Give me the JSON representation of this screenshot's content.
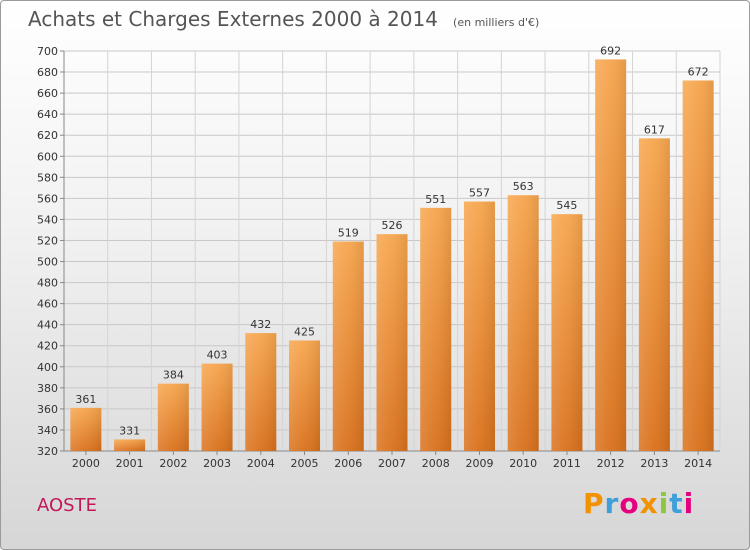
{
  "title": "Achats et Charges Externes 2000 à 2014",
  "subtitle": "(en milliers d'€)",
  "commune": "AOSTE",
  "logo": {
    "letters": [
      "P",
      "r",
      "o",
      "x",
      "i",
      "t",
      "i"
    ],
    "colors": [
      "#f39200",
      "#3f9fd8",
      "#e5007e",
      "#f39200",
      "#8dc63f",
      "#3f9fd8",
      "#e5007e"
    ]
  },
  "chart_data": {
    "type": "bar",
    "title": "Achats et Charges Externes 2000 à 2014",
    "subtitle": "(en milliers d'€)",
    "categories": [
      "2000",
      "2001",
      "2002",
      "2003",
      "2004",
      "2005",
      "2006",
      "2007",
      "2008",
      "2009",
      "2010",
      "2011",
      "2012",
      "2013",
      "2014"
    ],
    "values": [
      361,
      331,
      384,
      403,
      432,
      425,
      519,
      526,
      551,
      557,
      563,
      545,
      692,
      617,
      672
    ],
    "ylim": [
      320,
      700
    ],
    "yticks": [
      320,
      340,
      360,
      380,
      400,
      420,
      440,
      460,
      480,
      500,
      520,
      540,
      560,
      580,
      600,
      620,
      640,
      660,
      680,
      700
    ],
    "grid": true,
    "bar_color": "#f0932b"
  }
}
